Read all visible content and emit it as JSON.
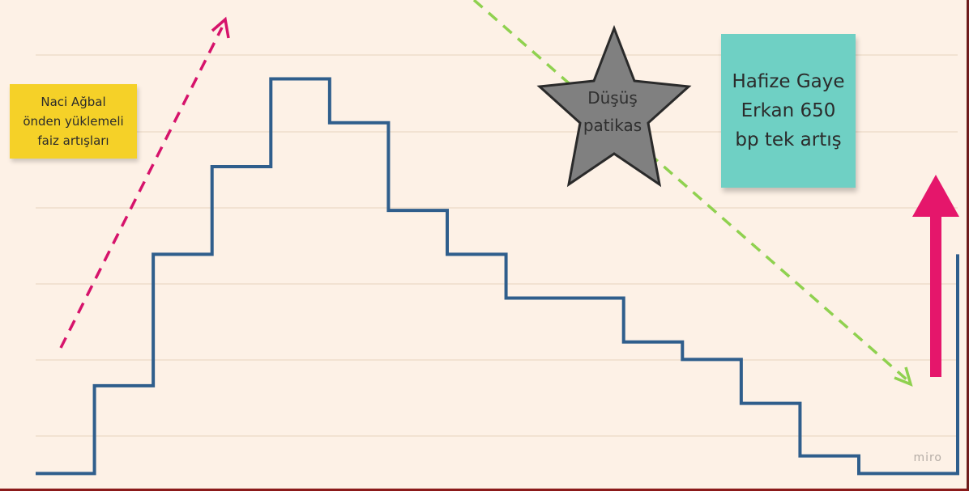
{
  "chart_data": {
    "type": "line",
    "step": true,
    "x": [
      0,
      1,
      2,
      3,
      4,
      5,
      6,
      7,
      8,
      9,
      10,
      11,
      12,
      13,
      14,
      15
    ],
    "series": [
      {
        "values": [
          0,
          1,
          2.5,
          3.5,
          4.5,
          4,
          3,
          2.5,
          2,
          2,
          1.5,
          1.3,
          0.8,
          0.2,
          0,
          2.5
        ]
      }
    ],
    "ylim": [
      -0.2,
      5.4
    ],
    "grid": true,
    "annotations": [
      {
        "kind": "arrow",
        "direction": "up",
        "style": "dashed",
        "color": "#d6136b"
      },
      {
        "kind": "arrow",
        "direction": "down",
        "style": "dashed",
        "color": "#8fd14f"
      },
      {
        "kind": "arrow",
        "direction": "up",
        "style": "solid",
        "color": "#e5166b"
      }
    ]
  },
  "notes": {
    "yellow": {
      "lines": [
        "Naci Ağbal",
        "önden yüklemeli",
        "faiz artışları"
      ],
      "color": "#f5d128"
    },
    "teal": {
      "lines": [
        "Hafize Gaye",
        "Erkan 650",
        "bp tek artış"
      ],
      "color": "#6fd0c4"
    }
  },
  "star": {
    "lines": [
      "Düşüş",
      "patikas"
    ],
    "fill": "#808080"
  },
  "watermark": "miro",
  "colors": {
    "line": "#2f5e8c",
    "background": "#fdf1e6",
    "gridline": "#f2e2d2"
  }
}
